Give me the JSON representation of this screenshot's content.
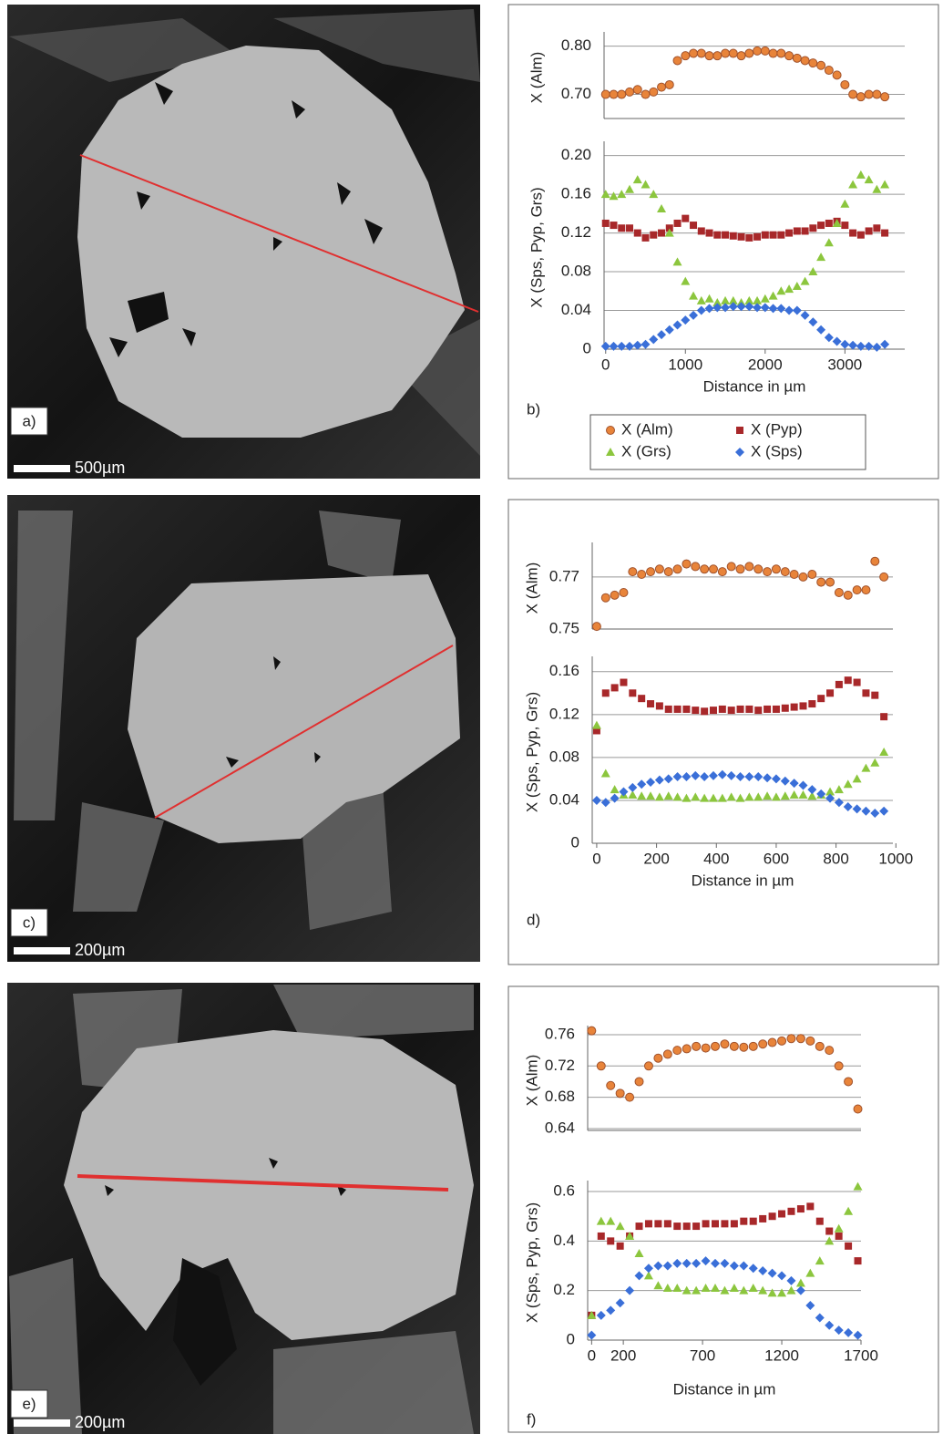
{
  "images": [
    {
      "label": "a)",
      "scale_bar": "500µm"
    },
    {
      "label": "c)",
      "scale_bar": "200µm"
    },
    {
      "label": "e)",
      "scale_bar": "200µm"
    }
  ],
  "chart_data": [
    {
      "type": "scatter",
      "ylabel": "X (Alm)",
      "xlim": [
        -20,
        3750
      ],
      "ylim": [
        0.65,
        0.82
      ],
      "yticks": [
        {
          "value": 0.7,
          "label": "0.70"
        },
        {
          "value": 0.8,
          "label": "0.80"
        }
      ],
      "grid": true,
      "legend": "bottom",
      "x": [
        0,
        100,
        200,
        300,
        400,
        500,
        600,
        700,
        800,
        900,
        1000,
        1100,
        1200,
        1300,
        1400,
        1500,
        1600,
        1700,
        1800,
        1900,
        2000,
        2100,
        2200,
        2300,
        2400,
        2500,
        2600,
        2700,
        2800,
        2900,
        3000,
        3100,
        3200,
        3300,
        3400,
        3500
      ],
      "series": [
        {
          "name": "X (Alm)",
          "color": "#e8843a",
          "marker": "circle",
          "values": [
            0.7,
            0.7,
            0.7,
            0.705,
            0.71,
            0.7,
            0.705,
            0.715,
            0.72,
            0.77,
            0.78,
            0.785,
            0.785,
            0.78,
            0.78,
            0.785,
            0.785,
            0.78,
            0.785,
            0.79,
            0.79,
            0.785,
            0.785,
            0.78,
            0.775,
            0.77,
            0.765,
            0.76,
            0.75,
            0.74,
            0.72,
            0.7,
            0.695,
            0.7,
            0.7,
            0.695
          ]
        }
      ]
    },
    {
      "type": "scatter",
      "ylabel": "X (Sps, Pyp, Grs)",
      "xlabel": "Distance in µm",
      "panel_label": "b)",
      "xlim": [
        -20,
        3750
      ],
      "ylim": [
        0,
        0.21
      ],
      "xticks": [
        0,
        1000,
        2000,
        3000
      ],
      "yticks": [
        0,
        0.04,
        0.08,
        0.12,
        0.16,
        {
          "value": 0.2,
          "label": "0.20"
        }
      ],
      "grid": true,
      "legend": "bottom",
      "x": [
        0,
        100,
        200,
        300,
        400,
        500,
        600,
        700,
        800,
        900,
        1000,
        1100,
        1200,
        1300,
        1400,
        1500,
        1600,
        1700,
        1800,
        1900,
        2000,
        2100,
        2200,
        2300,
        2400,
        2500,
        2600,
        2700,
        2800,
        2900,
        3000,
        3100,
        3200,
        3300,
        3400,
        3500
      ],
      "series": [
        {
          "name": "X (Pyp)",
          "color": "#a8282a",
          "marker": "square",
          "values": [
            0.13,
            0.128,
            0.125,
            0.125,
            0.12,
            0.115,
            0.118,
            0.12,
            0.125,
            0.13,
            0.135,
            0.128,
            0.122,
            0.12,
            0.118,
            0.118,
            0.117,
            0.116,
            0.115,
            0.116,
            0.118,
            0.118,
            0.118,
            0.12,
            0.122,
            0.122,
            0.125,
            0.128,
            0.13,
            0.132,
            0.128,
            0.12,
            0.118,
            0.122,
            0.125,
            0.12
          ]
        },
        {
          "name": "X (Grs)",
          "color": "#8cc63e",
          "marker": "triangle",
          "values": [
            0.16,
            0.158,
            0.16,
            0.165,
            0.175,
            0.17,
            0.16,
            0.145,
            0.12,
            0.09,
            0.07,
            0.055,
            0.05,
            0.052,
            0.048,
            0.05,
            0.05,
            0.048,
            0.05,
            0.05,
            0.052,
            0.055,
            0.06,
            0.062,
            0.065,
            0.07,
            0.08,
            0.095,
            0.11,
            0.13,
            0.15,
            0.17,
            0.18,
            0.175,
            0.165,
            0.17
          ]
        },
        {
          "name": "X (Sps)",
          "color": "#3a6fd8",
          "marker": "diamond",
          "values": [
            0.003,
            0.003,
            0.003,
            0.003,
            0.004,
            0.005,
            0.01,
            0.015,
            0.02,
            0.025,
            0.03,
            0.035,
            0.04,
            0.042,
            0.043,
            0.043,
            0.044,
            0.044,
            0.044,
            0.043,
            0.043,
            0.042,
            0.042,
            0.04,
            0.04,
            0.035,
            0.028,
            0.02,
            0.012,
            0.008,
            0.005,
            0.004,
            0.003,
            0.003,
            0.002,
            0.005
          ]
        }
      ]
    },
    {
      "type": "scatter",
      "ylabel": "X (Alm)",
      "xlim": [
        -15,
        990
      ],
      "ylim": [
        0.75,
        0.7815
      ],
      "yticks": [
        0.75,
        0.77
      ],
      "grid": true,
      "x": [
        0,
        30,
        60,
        90,
        120,
        150,
        180,
        210,
        240,
        270,
        300,
        330,
        360,
        390,
        420,
        450,
        480,
        510,
        540,
        570,
        600,
        630,
        660,
        690,
        720,
        750,
        780,
        810,
        840,
        870,
        900,
        930,
        960
      ],
      "series": [
        {
          "name": "X (Alm)",
          "color": "#e8843a",
          "marker": "circle",
          "values": [
            0.751,
            0.762,
            0.763,
            0.764,
            0.772,
            0.771,
            0.772,
            0.773,
            0.772,
            0.773,
            0.775,
            0.774,
            0.773,
            0.773,
            0.772,
            0.774,
            0.773,
            0.774,
            0.773,
            0.772,
            0.773,
            0.772,
            0.771,
            0.77,
            0.771,
            0.768,
            0.768,
            0.764,
            0.763,
            0.765,
            0.765,
            0.776,
            0.77
          ]
        }
      ]
    },
    {
      "type": "scatter",
      "ylabel": "X (Sps, Pyp, Grs)",
      "xlabel": "Distance in µm",
      "panel_label": "d)",
      "xlim": [
        -15,
        990
      ],
      "ylim": [
        0,
        0.17
      ],
      "xticks": [
        0,
        200,
        400,
        600,
        800,
        1000
      ],
      "yticks": [
        0,
        0.04,
        0.08,
        0.12,
        0.16
      ],
      "grid": true,
      "x": [
        0,
        30,
        60,
        90,
        120,
        150,
        180,
        210,
        240,
        270,
        300,
        330,
        360,
        390,
        420,
        450,
        480,
        510,
        540,
        570,
        600,
        630,
        660,
        690,
        720,
        750,
        780,
        810,
        840,
        870,
        900,
        930,
        960
      ],
      "series": [
        {
          "name": "X (Pyp)",
          "color": "#a8282a",
          "marker": "square",
          "values": [
            0.105,
            0.14,
            0.145,
            0.15,
            0.14,
            0.135,
            0.13,
            0.128,
            0.125,
            0.125,
            0.125,
            0.124,
            0.123,
            0.124,
            0.125,
            0.124,
            0.125,
            0.125,
            0.124,
            0.125,
            0.125,
            0.126,
            0.127,
            0.128,
            0.13,
            0.135,
            0.14,
            0.148,
            0.152,
            0.15,
            0.14,
            0.138,
            0.118
          ]
        },
        {
          "name": "X (Grs)",
          "color": "#8cc63e",
          "marker": "triangle",
          "values": [
            0.11,
            0.065,
            0.05,
            0.045,
            0.045,
            0.044,
            0.044,
            0.043,
            0.044,
            0.043,
            0.042,
            0.043,
            0.042,
            0.042,
            0.042,
            0.043,
            0.042,
            0.043,
            0.043,
            0.044,
            0.043,
            0.044,
            0.045,
            0.045,
            0.044,
            0.045,
            0.048,
            0.05,
            0.055,
            0.06,
            0.07,
            0.075,
            0.085
          ]
        },
        {
          "name": "X (Sps)",
          "color": "#3a6fd8",
          "marker": "diamond",
          "values": [
            0.04,
            0.038,
            0.042,
            0.048,
            0.052,
            0.055,
            0.057,
            0.059,
            0.06,
            0.062,
            0.062,
            0.063,
            0.062,
            0.063,
            0.064,
            0.063,
            0.062,
            0.062,
            0.062,
            0.061,
            0.06,
            0.058,
            0.056,
            0.054,
            0.05,
            0.046,
            0.042,
            0.038,
            0.034,
            0.032,
            0.03,
            0.028,
            0.03
          ]
        }
      ]
    },
    {
      "type": "scatter",
      "ylabel": "X (Alm)",
      "xlim": [
        -25,
        1700
      ],
      "ylim": [
        0.6376,
        0.7658
      ],
      "yticks": [
        0.64,
        0.68,
        0.72,
        0.76
      ],
      "grid": true,
      "x": [
        0,
        60,
        120,
        180,
        240,
        300,
        360,
        420,
        480,
        540,
        600,
        660,
        720,
        780,
        840,
        900,
        960,
        1020,
        1080,
        1140,
        1200,
        1260,
        1320,
        1380,
        1440,
        1500,
        1560,
        1620,
        1680
      ],
      "series": [
        {
          "name": "X (Alm)",
          "color": "#e8843a",
          "marker": "circle",
          "values": [
            0.765,
            0.72,
            0.695,
            0.685,
            0.68,
            0.7,
            0.72,
            0.73,
            0.735,
            0.74,
            0.742,
            0.745,
            0.743,
            0.745,
            0.748,
            0.745,
            0.744,
            0.745,
            0.748,
            0.75,
            0.752,
            0.755,
            0.755,
            0.752,
            0.745,
            0.74,
            0.72,
            0.7,
            0.665
          ]
        }
      ]
    },
    {
      "type": "scatter",
      "ylabel": "X (Sps, Pyp, Grs)",
      "xlabel": "Distance in µm",
      "panel_label": "f)",
      "xlim": [
        -25,
        1700
      ],
      "ylim": [
        0,
        0.626
      ],
      "xticks": [
        0,
        200,
        700,
        1200,
        1700
      ],
      "yticks": [
        0,
        0.2,
        0.4,
        0.6
      ],
      "grid": true,
      "x": [
        0,
        60,
        120,
        180,
        240,
        300,
        360,
        420,
        480,
        540,
        600,
        660,
        720,
        780,
        840,
        900,
        960,
        1020,
        1080,
        1140,
        1200,
        1260,
        1320,
        1380,
        1440,
        1500,
        1560,
        1620,
        1680
      ],
      "series": [
        {
          "name": "X (Pyp)",
          "color": "#a8282a",
          "marker": "square",
          "values": [
            0.1,
            0.42,
            0.4,
            0.38,
            0.42,
            0.46,
            0.47,
            0.47,
            0.47,
            0.46,
            0.46,
            0.46,
            0.47,
            0.47,
            0.47,
            0.47,
            0.48,
            0.48,
            0.49,
            0.5,
            0.51,
            0.52,
            0.53,
            0.54,
            0.48,
            0.44,
            0.42,
            0.38,
            0.32
          ]
        },
        {
          "name": "X (Grs)",
          "color": "#8cc63e",
          "marker": "triangle",
          "values": [
            0.1,
            0.48,
            0.48,
            0.46,
            0.42,
            0.35,
            0.26,
            0.22,
            0.21,
            0.21,
            0.2,
            0.2,
            0.21,
            0.21,
            0.2,
            0.21,
            0.2,
            0.21,
            0.2,
            0.19,
            0.19,
            0.2,
            0.23,
            0.27,
            0.32,
            0.4,
            0.45,
            0.52,
            0.62
          ]
        },
        {
          "name": "X (Sps)",
          "color": "#3a6fd8",
          "marker": "diamond",
          "values": [
            0.02,
            0.1,
            0.12,
            0.15,
            0.2,
            0.26,
            0.29,
            0.3,
            0.3,
            0.31,
            0.31,
            0.31,
            0.32,
            0.31,
            0.31,
            0.3,
            0.3,
            0.29,
            0.28,
            0.27,
            0.26,
            0.24,
            0.2,
            0.14,
            0.09,
            0.06,
            0.04,
            0.03,
            0.02
          ]
        }
      ]
    }
  ]
}
